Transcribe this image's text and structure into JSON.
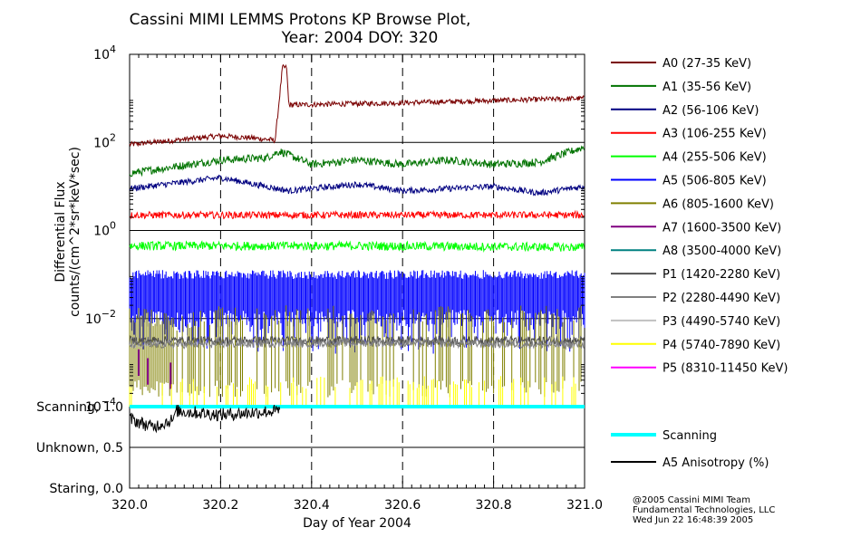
{
  "chart_data": {
    "type": "line",
    "title_line1": "Cassini MIMI LEMMS Protons KP Browse Plot,",
    "title_line2": "Year: 2004 DOY: 320",
    "ylabel_line1": "Differential Flux",
    "ylabel_line2": "counts/(cm^2*sr*keV*sec)",
    "xlabel": "Day of Year 2004",
    "xlim": [
      320.0,
      321.0
    ],
    "x_ticks": [
      320.0,
      320.2,
      320.4,
      320.6,
      320.8,
      321.0
    ],
    "x_tick_labels": [
      "320.0",
      "320.2",
      "320.4",
      "320.6",
      "320.8",
      "321.0"
    ],
    "y_scale": "log",
    "ylim_log10": [
      -4,
      4
    ],
    "y_ticks": [
      {
        "base": "10",
        "exp": "4"
      },
      {
        "base": "10",
        "exp": "2"
      },
      {
        "base": "10",
        "exp": "0"
      },
      {
        "base": "10",
        "exp": "−2"
      },
      {
        "base": "10",
        "exp": "−4"
      }
    ],
    "y_tick_exponents": [
      4,
      2,
      0,
      -2,
      -4
    ],
    "vertical_dashed_lines_at": [
      320.2,
      320.4,
      320.6,
      320.8
    ],
    "series": [
      {
        "name": "A0 (27-35 KeV)",
        "color": "#7a0000",
        "points": [
          [
            320.0,
            1.95
          ],
          [
            320.1,
            2.05
          ],
          [
            320.2,
            2.15
          ],
          [
            320.27,
            2.1
          ],
          [
            320.32,
            2.05
          ],
          [
            320.336,
            3.7
          ],
          [
            320.345,
            3.7
          ],
          [
            320.35,
            2.85
          ],
          [
            320.6,
            2.9
          ],
          [
            321.0,
            3.0
          ]
        ]
      },
      {
        "name": "A1 (35-56 KeV)",
        "color": "#007300",
        "points": [
          [
            320.0,
            1.3
          ],
          [
            320.1,
            1.45
          ],
          [
            320.2,
            1.6
          ],
          [
            320.3,
            1.65
          ],
          [
            320.33,
            1.8
          ],
          [
            320.4,
            1.5
          ],
          [
            320.5,
            1.6
          ],
          [
            320.6,
            1.5
          ],
          [
            320.7,
            1.6
          ],
          [
            320.8,
            1.5
          ],
          [
            320.9,
            1.55
          ],
          [
            321.0,
            1.9
          ]
        ]
      },
      {
        "name": "A2 (56-106 KeV)",
        "color": "#000080",
        "points": [
          [
            320.0,
            0.95
          ],
          [
            320.2,
            1.2
          ],
          [
            320.35,
            0.9
          ],
          [
            320.5,
            1.05
          ],
          [
            320.6,
            0.9
          ],
          [
            320.8,
            1.0
          ],
          [
            320.9,
            0.85
          ],
          [
            321.0,
            1.0
          ]
        ]
      },
      {
        "name": "A3 (106-255 KeV)",
        "color": "#ff0000",
        "points": [
          [
            320.0,
            0.35
          ],
          [
            320.5,
            0.35
          ],
          [
            321.0,
            0.35
          ]
        ]
      },
      {
        "name": "A4 (255-506 KeV)",
        "color": "#00ff00",
        "points": [
          [
            320.0,
            -0.35
          ],
          [
            320.5,
            -0.35
          ],
          [
            321.0,
            -0.38
          ]
        ]
      },
      {
        "name": "A5 (506-805 KeV)",
        "color": "#0000ff",
        "points": [
          [
            320.0,
            -1.5
          ],
          [
            320.5,
            -1.5
          ],
          [
            321.0,
            -1.5
          ]
        ]
      },
      {
        "name": "A6 (805-1600 KeV)",
        "color": "#808000",
        "points": [
          [
            320.0,
            -2.6
          ],
          [
            320.1,
            -2.8
          ],
          [
            320.2,
            -2.6
          ],
          [
            320.5,
            -2.6
          ],
          [
            321.0,
            -2.6
          ]
        ]
      },
      {
        "name": "A7 (1600-3500 KeV)",
        "color": "#800080",
        "points": [
          [
            320.02,
            -3.0
          ],
          [
            320.04,
            -3.2
          ],
          [
            320.09,
            -3.3
          ]
        ]
      },
      {
        "name": "A8 (3500-4000 KeV)",
        "color": "#008080",
        "points": []
      },
      {
        "name": "P1 (1420-2280 KeV)",
        "color": "#505050",
        "points": [
          [
            320.0,
            -2.5
          ],
          [
            321.0,
            -2.5
          ]
        ]
      },
      {
        "name": "P2 (2280-4490 KeV)",
        "color": "#808080",
        "points": [
          [
            320.0,
            -2.6
          ],
          [
            320.5,
            -2.55
          ],
          [
            321.0,
            -2.6
          ]
        ]
      },
      {
        "name": "P3 (4490-5740 KeV)",
        "color": "#c0c0c0",
        "points": []
      },
      {
        "name": "P4 (5740-7890 KeV)",
        "color": "#ffff00",
        "points": [
          [
            320.0,
            -3.8
          ],
          [
            321.0,
            -3.8
          ]
        ]
      },
      {
        "name": "P5 (8310-11450 KeV)",
        "color": "#ff00ff",
        "points": []
      }
    ],
    "status_panel": {
      "ylabels": [
        "Scanning, 1.0",
        "Unknown, 0.5",
        "Staring, 0.0"
      ],
      "y_values": [
        1.0,
        0.5,
        0.0
      ],
      "series": [
        {
          "name": "Scanning",
          "color": "#00ffff",
          "points": [
            [
              320.0,
              1.0
            ],
            [
              321.0,
              1.0
            ]
          ]
        },
        {
          "name": "A5 Anisotropy (%)",
          "color": "#000000",
          "points": [
            [
              320.0,
              0.85
            ],
            [
              320.05,
              0.75
            ],
            [
              320.1,
              0.85
            ],
            [
              320.1,
              0.95
            ],
            [
              320.2,
              0.9
            ],
            [
              320.33,
              0.95
            ]
          ]
        }
      ]
    }
  },
  "credits": {
    "line1": "@2005 Cassini MIMI Team",
    "line2": "Fundamental Technologies, LLC",
    "line3": "Wed Jun 22 16:48:39 2005"
  }
}
